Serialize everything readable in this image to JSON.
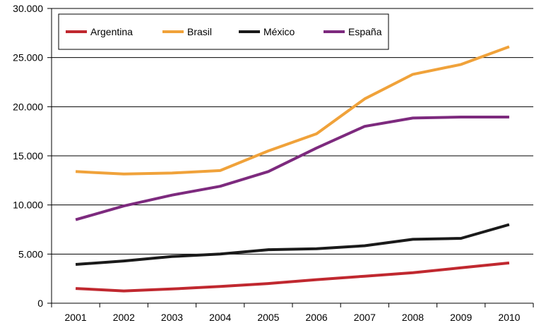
{
  "chart_data": {
    "type": "line",
    "title": "",
    "xlabel": "",
    "ylabel": "",
    "categories": [
      "2001",
      "2002",
      "2003",
      "2004",
      "2005",
      "2006",
      "2007",
      "2008",
      "2009",
      "2010"
    ],
    "ylim": [
      0,
      30000
    ],
    "yticks": [
      0,
      5000,
      10000,
      15000,
      20000,
      25000,
      30000
    ],
    "ytick_labels": [
      "0",
      "5.000",
      "10.000",
      "15.000",
      "20.000",
      "25.000",
      "30.000"
    ],
    "grid": "horizontal",
    "legend_position": "top-left",
    "series": [
      {
        "name": "Argentina",
        "color": "#c0282f",
        "values": [
          1500,
          1250,
          1450,
          1700,
          2000,
          2400,
          2750,
          3100,
          3600,
          4100
        ]
      },
      {
        "name": "Brasil",
        "color": "#f0a23a",
        "values": [
          13400,
          13150,
          13250,
          13500,
          15500,
          17250,
          20800,
          23300,
          24300,
          26100
        ]
      },
      {
        "name": "México",
        "color": "#1a1a1a",
        "values": [
          3950,
          4300,
          4750,
          5000,
          5450,
          5550,
          5850,
          6500,
          6600,
          8000
        ]
      },
      {
        "name": "España",
        "color": "#7d2a7e",
        "values": [
          8500,
          9900,
          11000,
          11900,
          13400,
          15800,
          18000,
          18850,
          18950,
          18950
        ]
      }
    ]
  }
}
